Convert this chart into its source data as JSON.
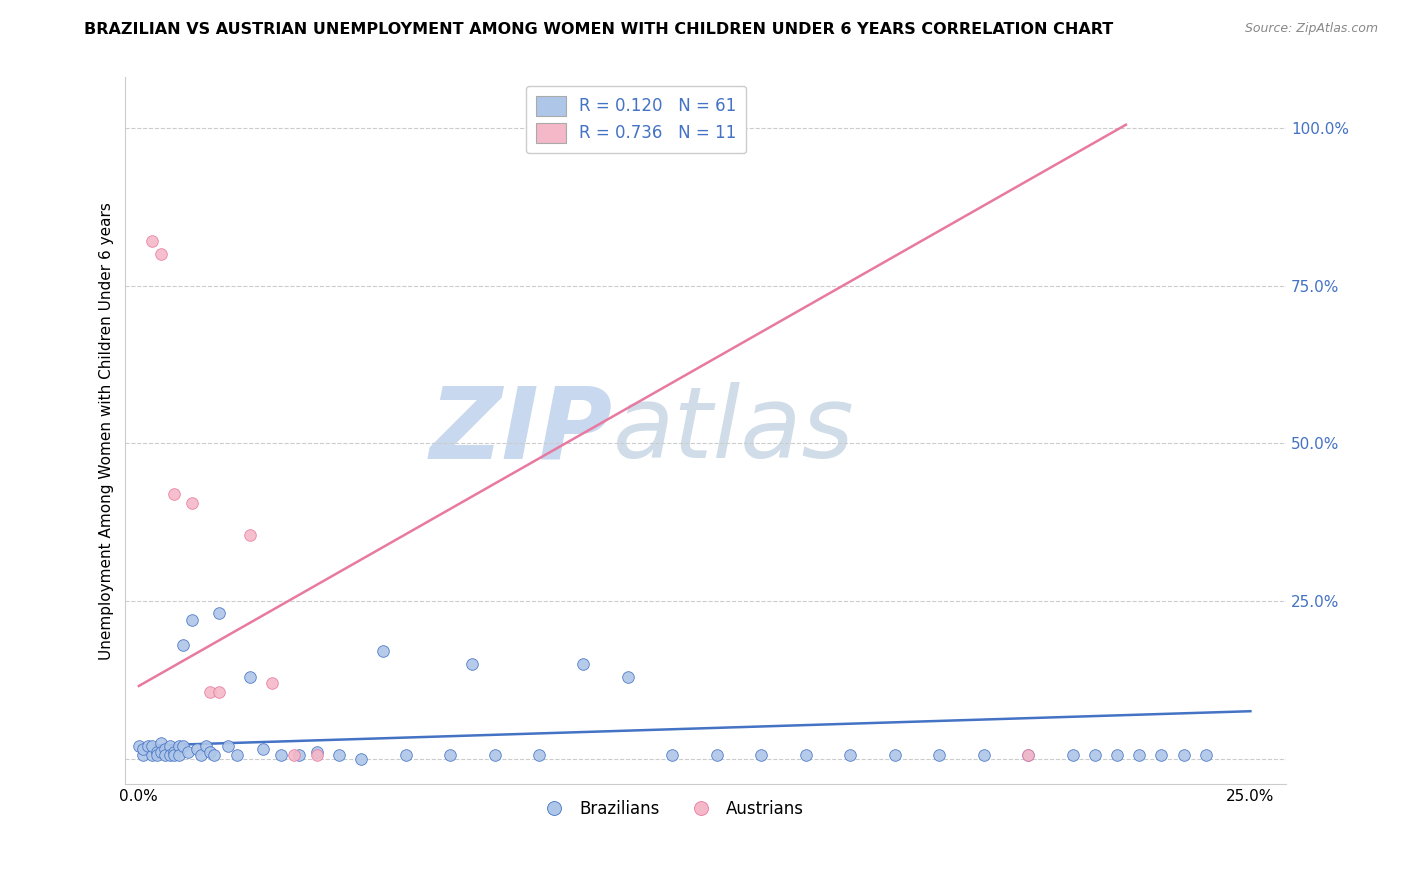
{
  "title": "BRAZILIAN VS AUSTRIAN UNEMPLOYMENT AMONG WOMEN WITH CHILDREN UNDER 6 YEARS CORRELATION CHART",
  "source": "Source: ZipAtlas.com",
  "ylabel": "Unemployment Among Women with Children Under 6 years",
  "xlim": [
    -0.003,
    0.258
  ],
  "ylim": [
    -0.04,
    1.08
  ],
  "xticks": [
    0.0,
    0.25
  ],
  "xticklabels": [
    "0.0%",
    "25.0%"
  ],
  "yticks": [
    0.0,
    0.25,
    0.5,
    0.75,
    1.0
  ],
  "yticklabels": [
    "",
    "25.0%",
    "50.0%",
    "75.0%",
    "100.0%"
  ],
  "watermark_zip": "ZIP",
  "watermark_atlas": "atlas",
  "legend_label1": "Brazilians",
  "legend_label2": "Austrians",
  "brazil_color": "#aec6e8",
  "austria_color": "#f4b8c8",
  "brazil_line_color": "#4472c4",
  "austria_line_color": "#e879a0",
  "brazil_scatter_x": [
    0.0,
    0.001,
    0.001,
    0.002,
    0.003,
    0.003,
    0.004,
    0.004,
    0.005,
    0.005,
    0.006,
    0.006,
    0.007,
    0.007,
    0.008,
    0.008,
    0.009,
    0.009,
    0.01,
    0.01,
    0.011,
    0.012,
    0.013,
    0.014,
    0.015,
    0.016,
    0.017,
    0.018,
    0.02,
    0.022,
    0.025,
    0.028,
    0.032,
    0.036,
    0.04,
    0.045,
    0.05,
    0.055,
    0.06,
    0.07,
    0.075,
    0.08,
    0.09,
    0.1,
    0.11,
    0.12,
    0.13,
    0.14,
    0.15,
    0.16,
    0.17,
    0.18,
    0.19,
    0.2,
    0.21,
    0.215,
    0.22,
    0.225,
    0.23,
    0.235,
    0.24
  ],
  "brazil_scatter_y": [
    0.02,
    0.005,
    0.015,
    0.02,
    0.005,
    0.02,
    0.01,
    0.005,
    0.025,
    0.01,
    0.015,
    0.005,
    0.02,
    0.005,
    0.01,
    0.005,
    0.02,
    0.005,
    0.18,
    0.02,
    0.01,
    0.22,
    0.015,
    0.005,
    0.02,
    0.01,
    0.005,
    0.23,
    0.02,
    0.005,
    0.13,
    0.015,
    0.005,
    0.005,
    0.01,
    0.005,
    0.0,
    0.17,
    0.005,
    0.005,
    0.15,
    0.005,
    0.005,
    0.15,
    0.13,
    0.005,
    0.005,
    0.005,
    0.005,
    0.005,
    0.005,
    0.005,
    0.005,
    0.005,
    0.005,
    0.005,
    0.005,
    0.005,
    0.005,
    0.005,
    0.005
  ],
  "austria_scatter_x": [
    0.003,
    0.005,
    0.008,
    0.012,
    0.016,
    0.018,
    0.025,
    0.03,
    0.035,
    0.04,
    0.2
  ],
  "austria_scatter_y": [
    0.82,
    0.8,
    0.42,
    0.405,
    0.105,
    0.105,
    0.355,
    0.12,
    0.005,
    0.005,
    0.005
  ],
  "brazil_line_x": [
    0.0,
    0.25
  ],
  "brazil_line_y": [
    0.02,
    0.075
  ],
  "austria_line_x": [
    0.0,
    0.222
  ],
  "austria_line_y": [
    0.115,
    1.005
  ],
  "background_color": "#ffffff",
  "grid_color": "#cccccc",
  "title_fontsize": 11.5,
  "label_fontsize": 11,
  "tick_fontsize": 11,
  "watermark_color_zip": "#c8d8ee",
  "watermark_color_atlas": "#d0dde8",
  "watermark_fontsize": 72
}
